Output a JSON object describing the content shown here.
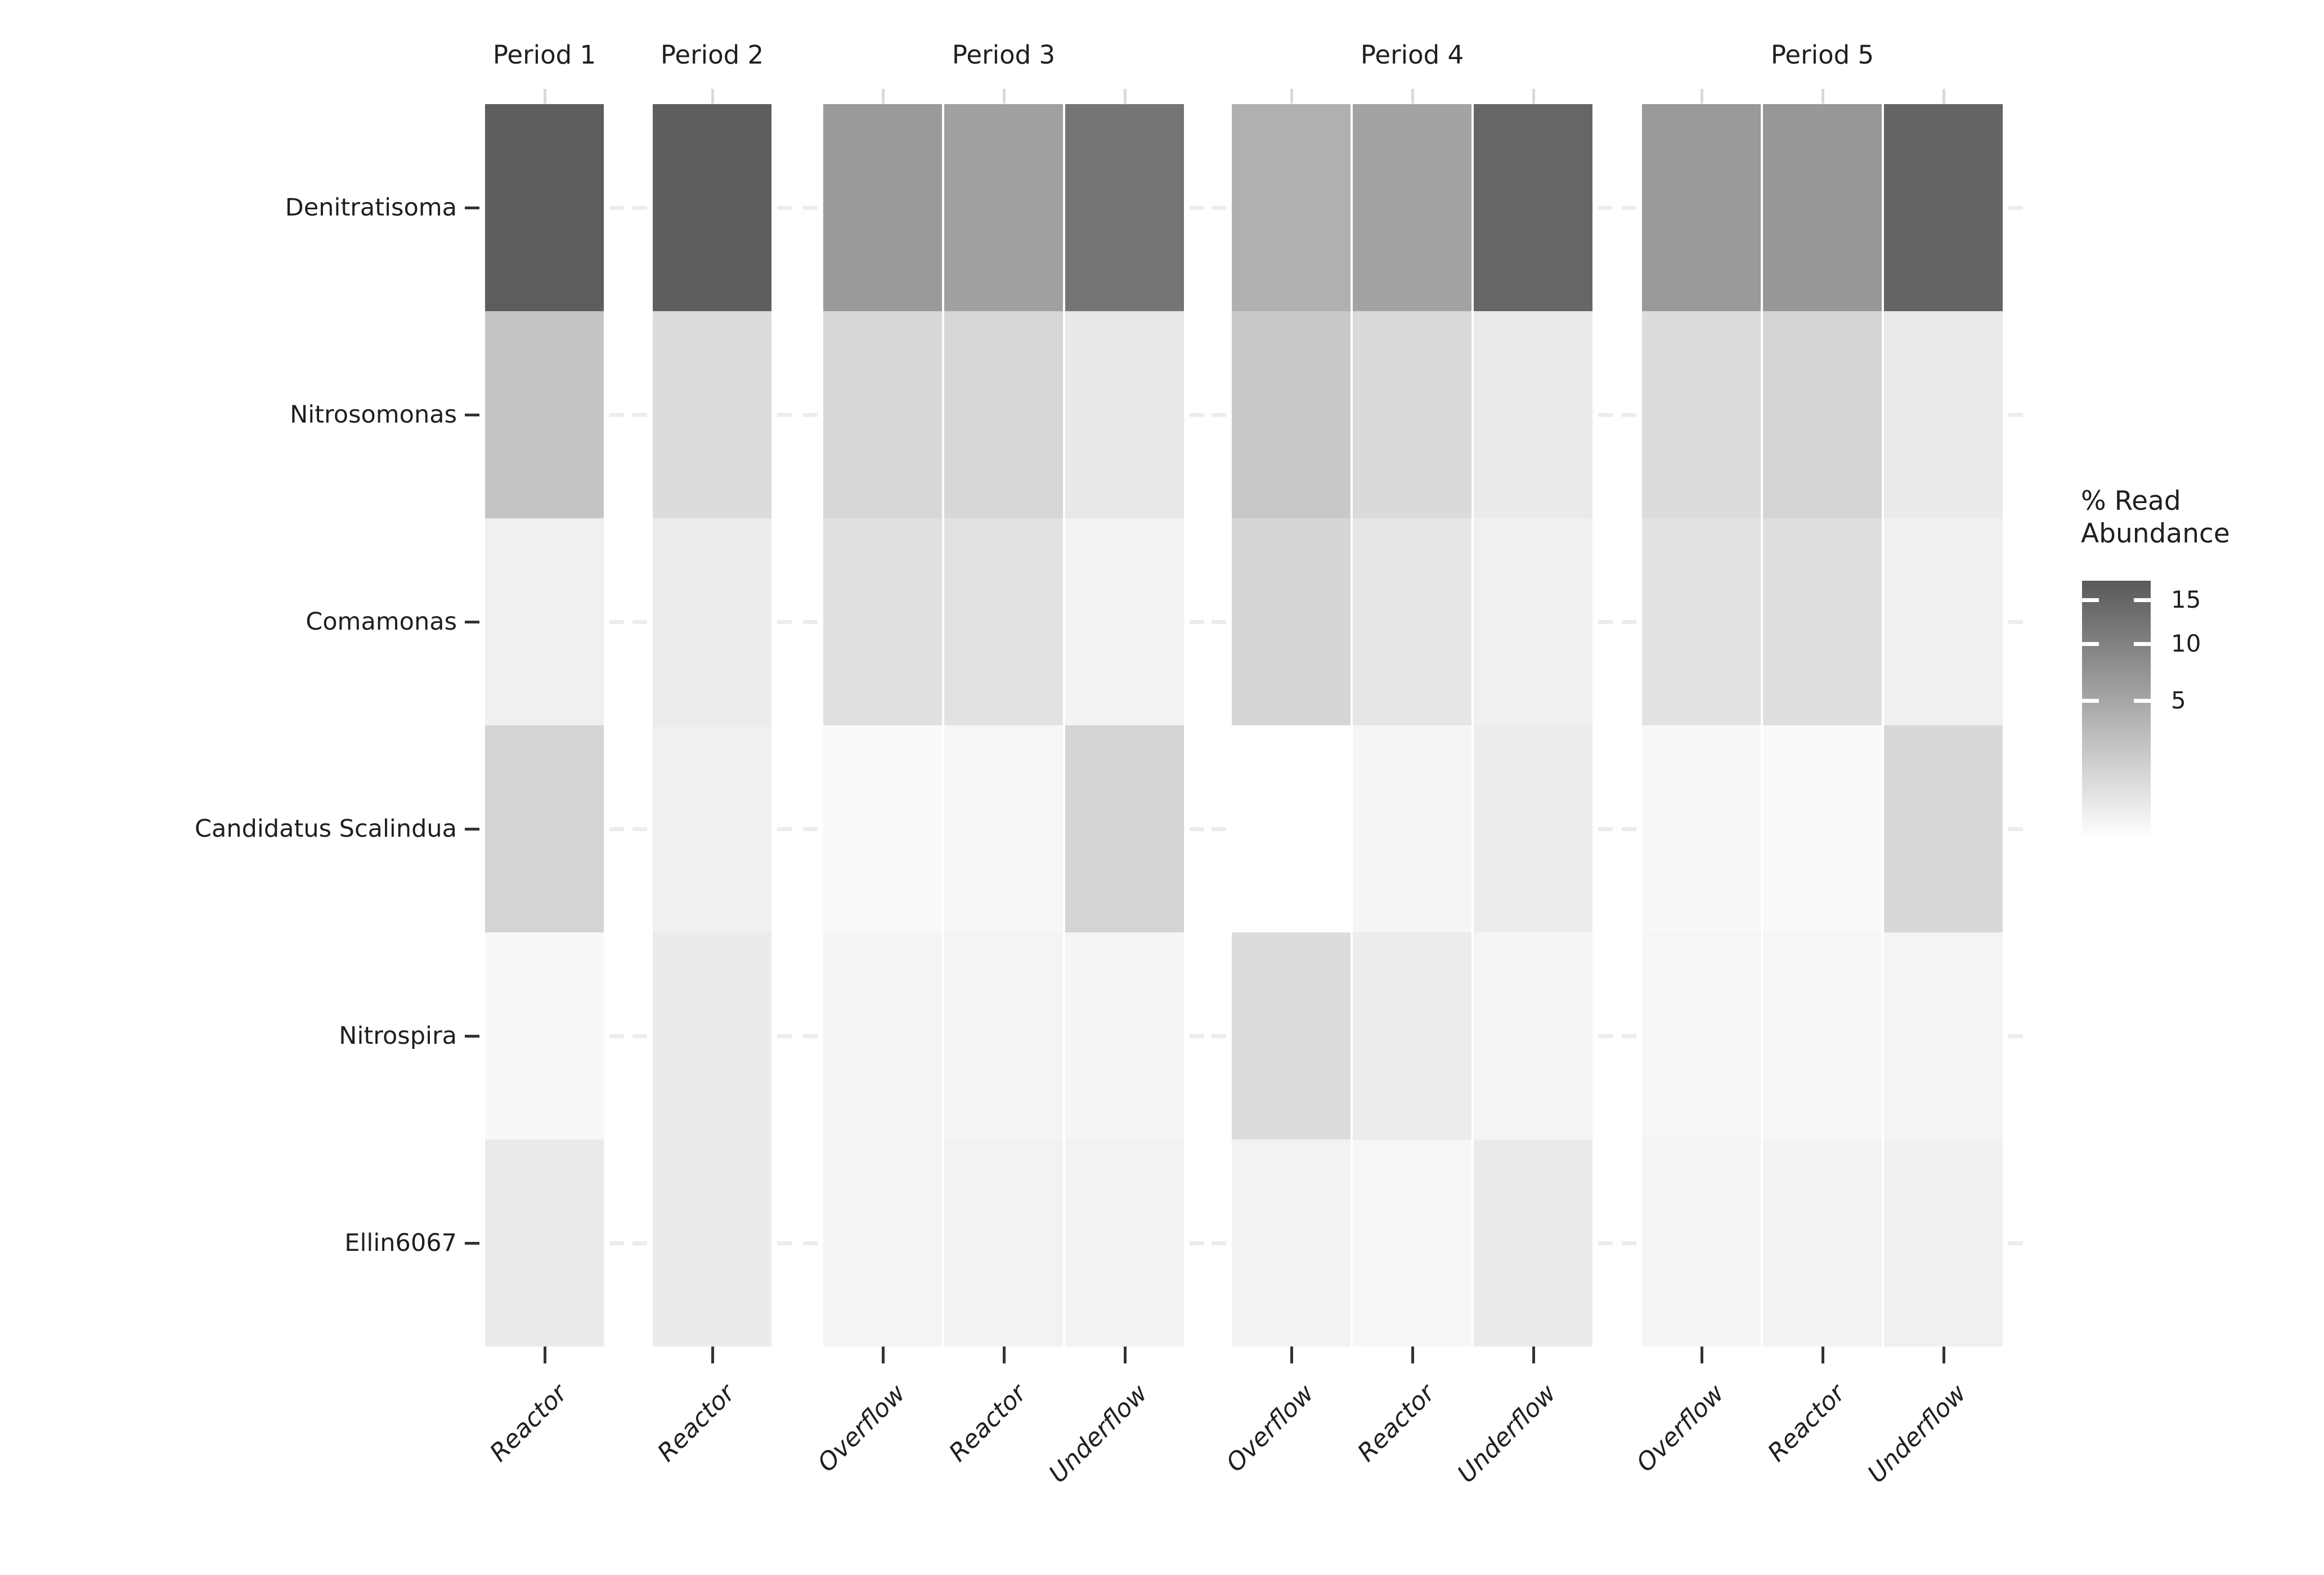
{
  "chart_data": {
    "type": "heatmap",
    "title": "",
    "xlabel": "",
    "ylabel": "",
    "grid": false,
    "legend": {
      "title_line1": "% Read",
      "title_line2": "Abundance",
      "ticks": [
        15,
        10,
        5
      ],
      "scale": "sqrt",
      "domain": [
        0,
        17.5
      ],
      "low_color": "#FFFFFF",
      "high_color": "#595959",
      "position": "right"
    },
    "rows": [
      "Denitratisoma",
      "Nitrosomonas",
      "Comamonas",
      "Candidatus Scalindua",
      "Nitrospira",
      "Ellin6067"
    ],
    "facets": [
      {
        "label": "Period 1",
        "columns": [
          "Reactor"
        ],
        "values": [
          [
            16.7
          ],
          [
            2.2
          ],
          [
            0.14
          ],
          [
            1.2
          ],
          [
            0.03
          ],
          [
            0.29
          ]
        ]
      },
      {
        "label": "Period 2",
        "columns": [
          "Reactor"
        ],
        "values": [
          [
            16.5
          ],
          [
            0.8
          ],
          [
            0.23
          ],
          [
            0.14
          ],
          [
            0.26
          ],
          [
            0.26
          ]
        ]
      },
      {
        "label": "Period 3",
        "columns": [
          "Overflow",
          "Reactor",
          "Underflow"
        ],
        "values": [
          [
            6.5,
            5.7,
            12.1
          ],
          [
            1.0,
            1.0,
            0.34
          ],
          [
            0.61,
            0.53,
            0.11
          ],
          [
            0.02,
            0.05,
            1.2
          ],
          [
            0.08,
            0.08,
            0.06
          ],
          [
            0.08,
            0.11,
            0.11
          ]
        ]
      },
      {
        "label": "Period 4",
        "columns": [
          "Overflow",
          "Reactor",
          "Underflow"
        ],
        "values": [
          [
            4.0,
            5.4,
            14.9
          ],
          [
            1.9,
            0.87,
            0.29
          ],
          [
            1.07,
            0.4,
            0.14
          ],
          [
            0.0,
            0.06,
            0.23
          ],
          [
            0.78,
            0.23,
            0.06
          ],
          [
            0.11,
            0.05,
            0.26
          ]
        ]
      },
      {
        "label": "Period 5",
        "columns": [
          "Overflow",
          "Reactor",
          "Underflow"
        ],
        "values": [
          [
            6.6,
            6.9,
            15.3
          ],
          [
            0.78,
            1.17,
            0.29
          ],
          [
            0.53,
            0.69,
            0.14
          ],
          [
            0.03,
            0.02,
            0.97
          ],
          [
            0.05,
            0.05,
            0.08
          ],
          [
            0.06,
            0.09,
            0.14
          ]
        ]
      }
    ]
  }
}
